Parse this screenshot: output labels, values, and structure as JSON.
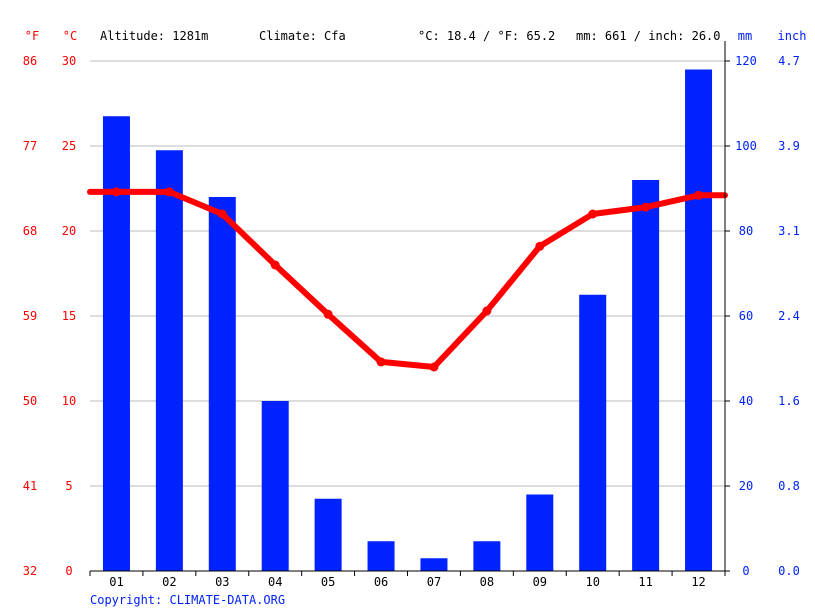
{
  "header": {
    "unit_f": "°F",
    "unit_c": "°C",
    "altitude": "Altitude: 1281m",
    "climate": "Climate: Cfa",
    "temp_avg": "°C: 18.4 / °F: 65.2",
    "precip_total": "mm: 661 / inch: 26.0",
    "unit_mm": "mm",
    "unit_inch": "inch"
  },
  "footer": {
    "copyright": "Copyright: CLIMATE-DATA.ORG"
  },
  "colors": {
    "temperature": "#ff0000",
    "precipitation": "#0022ff",
    "grid": "#bbbbbb",
    "axis": "#000000"
  },
  "chart_data": {
    "type": "bar+line",
    "categories": [
      "01",
      "02",
      "03",
      "04",
      "05",
      "06",
      "07",
      "08",
      "09",
      "10",
      "11",
      "12"
    ],
    "series": [
      {
        "type": "bar",
        "axis": "right",
        "unit": "mm",
        "values": [
          107,
          99,
          88,
          40,
          17,
          7,
          3,
          7,
          18,
          65,
          92,
          118
        ]
      },
      {
        "type": "line",
        "axis": "left",
        "unit": "°C",
        "values": [
          22.3,
          22.3,
          21.0,
          18.0,
          15.1,
          12.3,
          12.0,
          15.3,
          19.1,
          21.0,
          21.4,
          22.1
        ]
      }
    ],
    "y_left_c": {
      "range": [
        0,
        30
      ],
      "ticks": [
        "0",
        "5",
        "10",
        "15",
        "20",
        "25",
        "30"
      ]
    },
    "y_left_f": {
      "ticks": [
        "32",
        "41",
        "50",
        "59",
        "68",
        "77",
        "86"
      ]
    },
    "y_right_mm": {
      "range": [
        0,
        120
      ],
      "ticks": [
        "0",
        "20",
        "40",
        "60",
        "80",
        "100",
        "120"
      ]
    },
    "y_right_inch": {
      "ticks": [
        "0.0",
        "0.8",
        "1.6",
        "2.4",
        "3.1",
        "3.9",
        "4.7"
      ]
    },
    "grid": true
  }
}
